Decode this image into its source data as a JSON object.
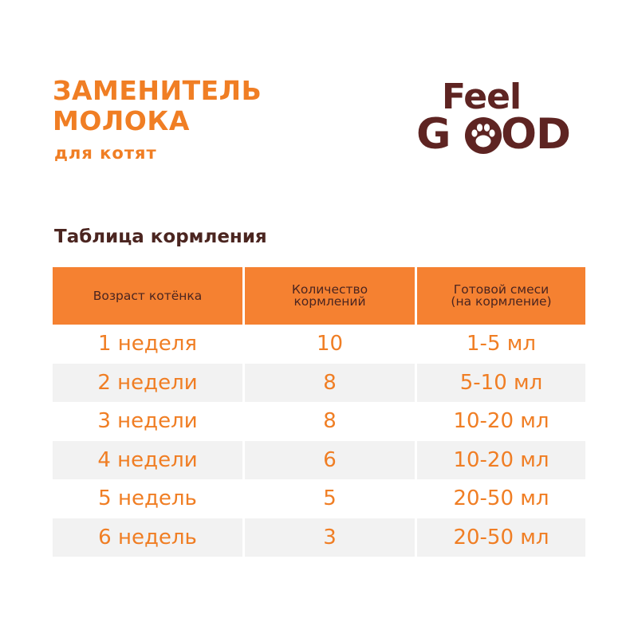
{
  "header": {
    "title_line1": "ЗАМЕНИТЕЛЬ",
    "title_line2": "МОЛОКА",
    "subtitle": "для котят"
  },
  "logo": {
    "word1": "Feel",
    "word2_start": "G",
    "word2_end": "OD",
    "paw_icon": "paw-icon"
  },
  "table": {
    "title": "Таблица кормления",
    "columns": [
      "Возраст котёнка",
      "Количество кормлений",
      "Готовой смеси (на кормление)"
    ],
    "columns_display": [
      [
        "Возраст котёнка"
      ],
      [
        "Количество",
        "кормлений"
      ],
      [
        "Готовой смеси",
        "(на кормление)"
      ]
    ],
    "rows": [
      [
        "1 неделя",
        "10",
        "1-5 мл"
      ],
      [
        "2 недели",
        "8",
        "5-10 мл"
      ],
      [
        "3 недели",
        "8",
        "10-20 мл"
      ],
      [
        "4 недели",
        "6",
        "10-20 мл"
      ],
      [
        "5 недель",
        "5",
        "20-50 мл"
      ],
      [
        "6 недель",
        "3",
        "20-50 мл"
      ]
    ]
  },
  "colors": {
    "accent": "#F07E24",
    "header_bg": "#F58131",
    "brand_brown": "#5E2422",
    "row_alt": "#F2F2F2"
  }
}
